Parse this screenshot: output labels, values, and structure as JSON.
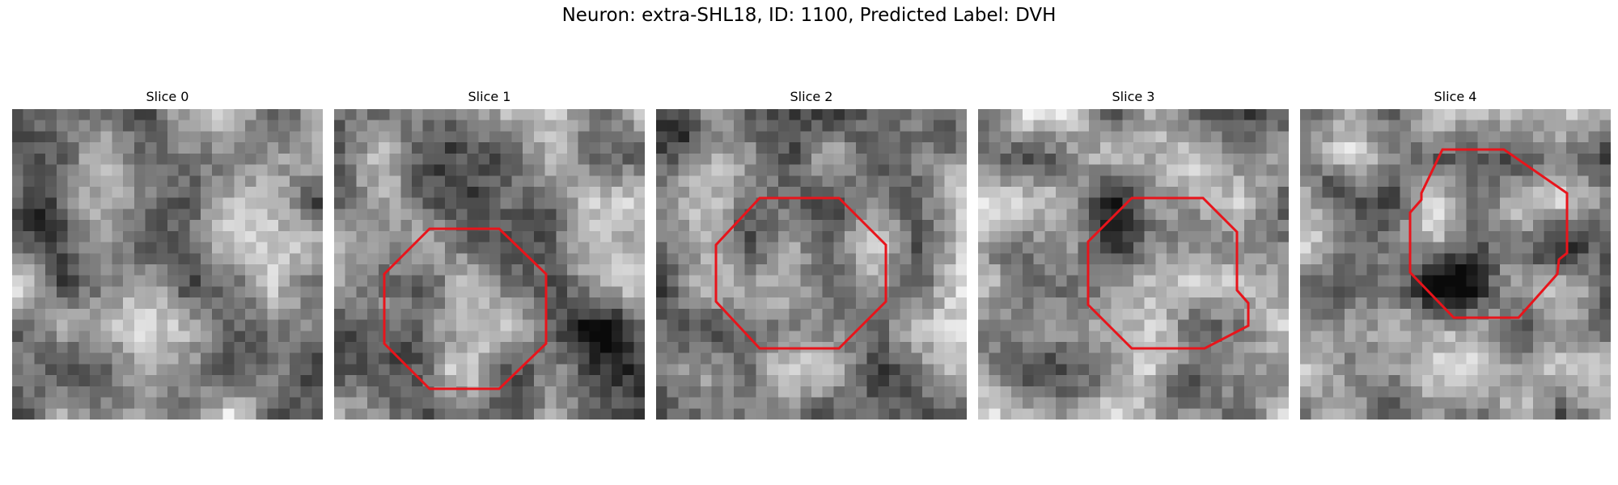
{
  "figure": {
    "title": "Neuron: extra-SHL18, ID: 1100, Predicted Label: DVH",
    "contour_color": "#e8141b"
  },
  "panels": [
    {
      "title": "Slice 0",
      "seed": 11,
      "has_contour": false
    },
    {
      "title": "Slice 1",
      "seed": 23,
      "has_contour": true
    },
    {
      "title": "Slice 2",
      "seed": 37,
      "has_contour": true
    },
    {
      "title": "Slice 3",
      "seed": 41,
      "has_contour": true
    },
    {
      "title": "Slice 4",
      "seed": 59,
      "has_contour": true
    }
  ]
}
